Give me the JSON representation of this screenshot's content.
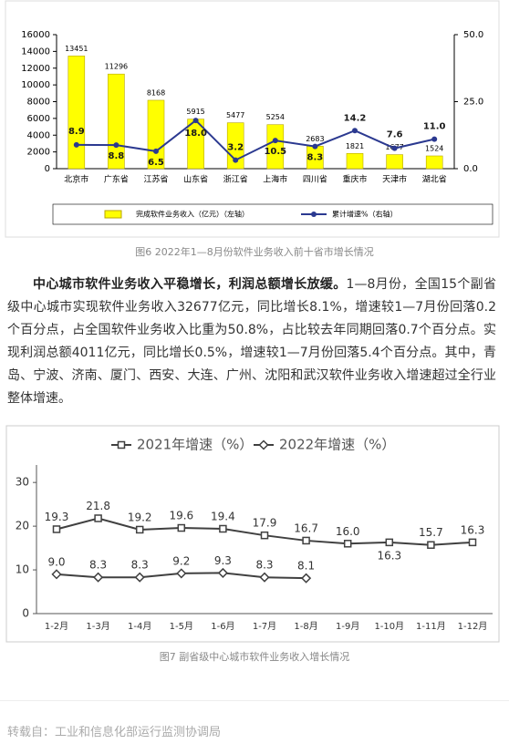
{
  "chart_data": [
    {
      "type": "bar",
      "caption": "图6  2022年1—8月份软件业务收入前十省市增长情况",
      "categories": [
        "北京市",
        "广东省",
        "江苏省",
        "山东省",
        "浙江省",
        "上海市",
        "四川省",
        "重庆市",
        "天津市",
        "湖北省"
      ],
      "series": [
        {
          "name": "完成软件业务收入（亿元）（左轴）",
          "color": "#ffff00",
          "values": [
            13451,
            11296,
            8168,
            5915,
            5477,
            5254,
            2683,
            1821,
            1677,
            1524
          ]
        },
        {
          "name": "累计增速%（右轴）",
          "color": "#2b3990",
          "type": "line",
          "axis": "y2",
          "values": [
            8.9,
            8.8,
            6.5,
            18.0,
            3.2,
            10.5,
            8.3,
            14.2,
            7.6,
            11.0
          ],
          "value_labels": [
            "8.9",
            "8.8",
            "6.5",
            "18.0",
            "3.2",
            "10.5",
            "8.3",
            "14.2",
            "7.6",
            "11.0"
          ]
        }
      ],
      "ylim": [
        0,
        16000
      ],
      "yticks": [
        0,
        2000,
        4000,
        6000,
        8000,
        10000,
        12000,
        14000,
        16000
      ],
      "y2lim": [
        0,
        50
      ],
      "y2ticks": [
        {
          "value": 0,
          "label": "0.0"
        },
        {
          "value": 25,
          "label": "25.0"
        },
        {
          "value": 50,
          "label": "50.0"
        }
      ]
    },
    {
      "type": "line",
      "caption": "图7  副省级中心城市软件业务收入增长情况",
      "categories": [
        "1-2月",
        "1-3月",
        "1-4月",
        "1-5月",
        "1-6月",
        "1-7月",
        "1-8月",
        "1-9月",
        "1-10月",
        "1-11月",
        "1-12月"
      ],
      "series": [
        {
          "name": "2021年增速（%）",
          "color": "#404040",
          "marker": "square",
          "values": [
            19.3,
            21.8,
            19.2,
            19.6,
            19.4,
            17.9,
            16.7,
            16.0,
            16.3,
            15.7,
            16.3
          ],
          "value_labels": [
            "19.3",
            "21.8",
            "19.2",
            "19.6",
            "19.4",
            "17.9",
            "16.7",
            "16.0",
            "16.3",
            "15.7",
            "16.3"
          ]
        },
        {
          "name": "2022年增速（%）",
          "color": "#404040",
          "marker": "diamond",
          "values": [
            9.0,
            8.3,
            8.3,
            9.2,
            9.3,
            8.3,
            8.1,
            null,
            null,
            null,
            null
          ],
          "value_labels": [
            "9.0",
            "8.3",
            "8.3",
            "9.2",
            "9.3",
            "8.3",
            "8.1",
            null,
            null,
            null,
            null
          ]
        }
      ],
      "ylim": [
        0,
        34
      ],
      "yticks": [
        0,
        10,
        20,
        30
      ],
      "grid": false,
      "legend": "top"
    }
  ],
  "body": {
    "lead": "中心城市软件业务收入平稳增长，利润总额增长放缓。",
    "text": "1—8月份，全国15个副省级中心城市实现软件业务收入32677亿元，同比增长8.1%，增速较1—7月份回落0.2个百分点，占全国软件业务收入比重为50.8%，占比较去年同期回落0.7个百分点。实现利润总额4011亿元，同比增长0.5%，增速较1—7月份回落5.4个百分点。其中，青岛、宁波、济南、厦门、西安、大连、广州、沈阳和武汉软件业务收入增速超过全行业整体增速。"
  },
  "source": "转载自：工业和信息化部运行监测协调局"
}
